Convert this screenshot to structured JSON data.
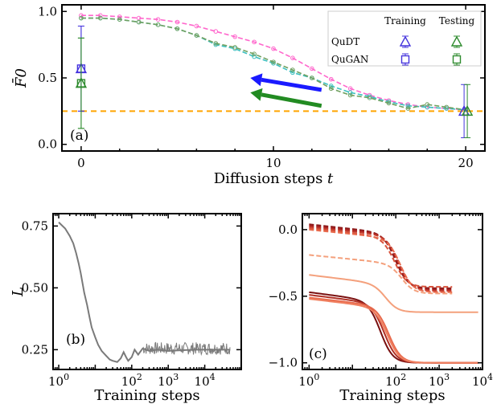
{
  "chart_data": [
    {
      "type": "line",
      "panel_label": "(a)",
      "xlabel": "Diffusion steps t",
      "ylabel": "F̄0",
      "xlim": [
        -1,
        21
      ],
      "ylim": [
        -0.05,
        1.05
      ],
      "xticks": [
        0,
        10,
        20
      ],
      "yticks": [
        0.0,
        0.5,
        1.0
      ],
      "x": [
        0,
        1,
        2,
        3,
        4,
        5,
        6,
        7,
        8,
        9,
        10,
        11,
        12,
        13,
        14,
        15,
        16,
        17,
        18,
        19,
        20
      ],
      "series": [
        {
          "name": "QuDT training",
          "color": "#ff66cc",
          "values": [
            0.97,
            0.97,
            0.96,
            0.95,
            0.94,
            0.92,
            0.89,
            0.85,
            0.81,
            0.77,
            0.72,
            0.65,
            0.57,
            0.49,
            0.42,
            0.37,
            0.33,
            0.3,
            0.28,
            0.27,
            0.26
          ]
        },
        {
          "name": "QuGAN training",
          "color": "#3bbfbf",
          "values": [
            0.95,
            0.95,
            0.94,
            0.92,
            0.9,
            0.87,
            0.82,
            0.75,
            0.72,
            0.66,
            0.61,
            0.54,
            0.5,
            0.44,
            0.39,
            0.36,
            0.32,
            0.29,
            0.28,
            0.27,
            0.26
          ]
        },
        {
          "name": "QuDT testing",
          "color": "#70a060",
          "values": [
            0.95,
            0.95,
            0.94,
            0.92,
            0.9,
            0.87,
            0.82,
            0.76,
            0.73,
            0.68,
            0.62,
            0.56,
            0.5,
            0.42,
            0.37,
            0.35,
            0.31,
            0.27,
            0.3,
            0.28,
            0.26
          ]
        }
      ],
      "errorbars": [
        {
          "name": "QuDT training",
          "x": 0,
          "y": 0.57,
          "err": 0.32,
          "color": "#4433dd",
          "marker": "triangle"
        },
        {
          "name": "QuGAN training",
          "x": 0,
          "y": 0.57,
          "err": 0.32,
          "color": "#4433dd",
          "marker": "square"
        },
        {
          "name": "QuDT testing",
          "x": 0,
          "y": 0.46,
          "err": 0.34,
          "color": "#2e8b2e",
          "marker": "triangle"
        },
        {
          "name": "QuGAN testing",
          "x": 0,
          "y": 0.46,
          "err": 0.34,
          "color": "#2e8b2e",
          "marker": "square"
        },
        {
          "name": "QuDT training end",
          "x": 20,
          "y": 0.25,
          "err": 0.2,
          "color": "#4433dd",
          "marker": "triangle"
        },
        {
          "name": "QuDT testing end",
          "x": 20,
          "y": 0.25,
          "err": 0.2,
          "color": "#2e8b2e",
          "marker": "triangle"
        }
      ],
      "hline": {
        "y": 0.25,
        "color": "#ffa500"
      },
      "arrows": [
        {
          "color": "#1a1aff",
          "from": [
            12.5,
            0.41
          ],
          "to": [
            8.8,
            0.5
          ]
        },
        {
          "color": "#228b22",
          "from": [
            12.5,
            0.29
          ],
          "to": [
            8.8,
            0.39
          ]
        }
      ],
      "legend": {
        "col_headers": [
          "Training",
          "Testing"
        ],
        "rows": [
          "QuDT",
          "QuGAN"
        ],
        "placement": "top-right"
      }
    },
    {
      "type": "line",
      "panel_label": "(b)",
      "xlabel": "Training steps",
      "ylabel": "L",
      "xscale": "log",
      "xlim": [
        0.7,
        100000
      ],
      "ylim": [
        0.17,
        0.8
      ],
      "xticks": [
        "10^0",
        "10^2",
        "10^3",
        "10^4"
      ],
      "yticks": [
        0.25,
        0.5,
        0.75
      ],
      "series": [
        {
          "name": "loss",
          "color": "#7a7a7a",
          "x": [
            1,
            1.5,
            2,
            2.5,
            3,
            3.5,
            4,
            5,
            6,
            7,
            8,
            10,
            12,
            15,
            20,
            25,
            30,
            40,
            50,
            60,
            70,
            80,
            100,
            120,
            150,
            200,
            300,
            500,
            1000,
            5000,
            50000
          ],
          "values": [
            0.765,
            0.74,
            0.71,
            0.68,
            0.64,
            0.6,
            0.56,
            0.48,
            0.43,
            0.38,
            0.34,
            0.3,
            0.27,
            0.245,
            0.225,
            0.21,
            0.205,
            0.2,
            0.215,
            0.24,
            0.22,
            0.205,
            0.22,
            0.25,
            0.23,
            0.255,
            0.245,
            0.25,
            0.245,
            0.25,
            0.25
          ],
          "noise_from_step": 200,
          "noise_band": [
            0.23,
            0.28
          ]
        }
      ]
    },
    {
      "type": "line",
      "panel_label": "(c)",
      "xlabel": "Training steps",
      "xscale": "log",
      "xlim": [
        0.7,
        10000
      ],
      "ylim": [
        -1.05,
        0.12
      ],
      "xticks": [
        "10^0",
        "10^2",
        "10^3",
        "10^4"
      ],
      "yticks": [
        0.0,
        -0.5,
        -1.0
      ],
      "series": [
        {
          "name": "d1",
          "style": "dashed",
          "color": "#8b1a1a",
          "start": 0.04,
          "end": -0.44,
          "mid": 100
        },
        {
          "name": "d2",
          "style": "dashed",
          "color": "#a52020",
          "start": 0.03,
          "end": -0.45,
          "mid": 110
        },
        {
          "name": "d3",
          "style": "dashed",
          "color": "#c0392b",
          "start": 0.02,
          "end": -0.46,
          "mid": 120
        },
        {
          "name": "d4",
          "style": "dashed",
          "color": "#d9533c",
          "start": 0.01,
          "end": -0.43,
          "mid": 95
        },
        {
          "name": "d5",
          "style": "dashed",
          "color": "#e86a4d",
          "start": 0.0,
          "end": -0.47,
          "mid": 130
        },
        {
          "name": "d6",
          "style": "dashed",
          "color": "#f4a07c",
          "start": -0.19,
          "end": -0.48,
          "mid": 140
        },
        {
          "name": "s1",
          "style": "solid",
          "color": "#f4a07c",
          "start": -0.34,
          "end": -0.62,
          "mid": 60
        },
        {
          "name": "s2",
          "style": "solid",
          "color": "#7a1010",
          "start": -0.47,
          "end": -1.0,
          "mid": 45
        },
        {
          "name": "s3",
          "style": "solid",
          "color": "#b03025",
          "start": -0.49,
          "end": -1.0,
          "mid": 55
        },
        {
          "name": "s4",
          "style": "solid",
          "color": "#e86a4d",
          "start": -0.51,
          "end": -1.0,
          "mid": 70
        },
        {
          "name": "s5",
          "style": "solid",
          "color": "#f08060",
          "start": -0.52,
          "end": -1.0,
          "mid": 65
        }
      ]
    }
  ]
}
